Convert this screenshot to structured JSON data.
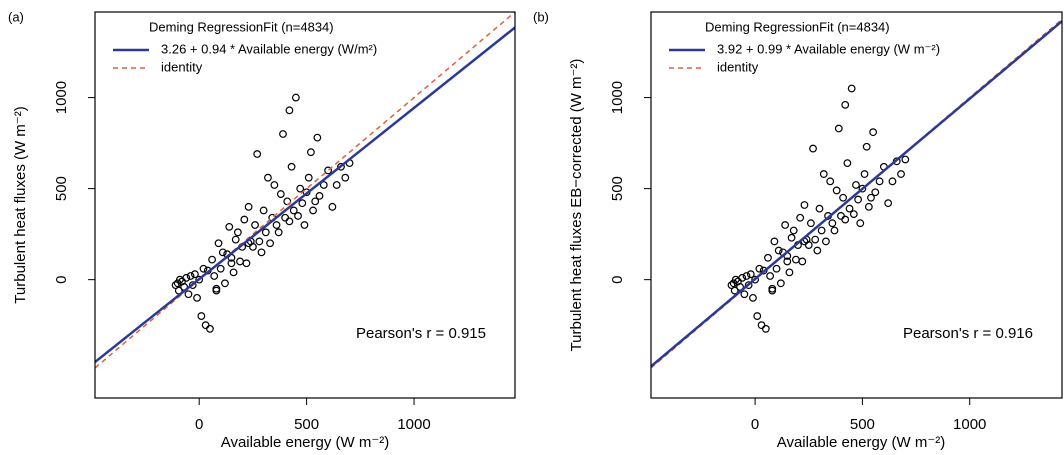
{
  "chart_data": [
    {
      "type": "scatter",
      "panel": "(a)",
      "xlabel": "Available energy (W m⁻²)",
      "ylabel": "Turbulent heat fluxes (W m⁻²)",
      "legend_title": "Deming RegressionFit (n=4834)",
      "annotation": "Pearson's r = 0.915",
      "xlim": [
        -485,
        1470
      ],
      "ylim": [
        -650,
        1470
      ],
      "xticks": [
        0,
        500,
        1000
      ],
      "yticks": [
        0,
        500,
        1000
      ],
      "point_color": "#000000",
      "x": [
        -110,
        -100,
        -95,
        -90,
        -80,
        -70,
        -60,
        -50,
        -40,
        -30,
        -20,
        -10,
        0,
        10,
        20,
        30,
        40,
        50,
        60,
        70,
        80,
        90,
        100,
        110,
        120,
        130,
        140,
        150,
        160,
        170,
        180,
        190,
        200,
        210,
        220,
        230,
        240,
        250,
        260,
        270,
        280,
        290,
        300,
        310,
        320,
        330,
        340,
        350,
        360,
        370,
        380,
        390,
        400,
        410,
        420,
        430,
        440,
        450,
        460,
        470,
        480,
        490,
        500,
        510,
        520,
        530,
        540,
        550,
        560,
        580,
        600,
        620,
        640,
        660,
        680,
        700,
        80,
        150,
        230,
        420
      ],
      "values": [
        -30,
        -20,
        -60,
        0,
        -10,
        -40,
        10,
        -80,
        20,
        -30,
        30,
        -100,
        0,
        -200,
        60,
        -250,
        50,
        -270,
        110,
        20,
        -60,
        200,
        60,
        150,
        -20,
        140,
        290,
        90,
        40,
        220,
        260,
        100,
        180,
        330,
        90,
        400,
        210,
        180,
        300,
        690,
        210,
        150,
        380,
        260,
        560,
        200,
        340,
        520,
        300,
        260,
        470,
        800,
        340,
        430,
        320,
        620,
        380,
        1000,
        350,
        500,
        420,
        300,
        480,
        560,
        700,
        380,
        430,
        780,
        460,
        520,
        600,
        400,
        520,
        620,
        560,
        640,
        -50,
        120,
        200,
        930
      ],
      "fit": {
        "name": "3.26 + 0.94 * Available energy (W/m²)",
        "intercept": 3.26,
        "slope": 0.94,
        "color": "#2b3a97"
      },
      "identity": {
        "name": "identity",
        "color": "#e0603a"
      }
    },
    {
      "type": "scatter",
      "panel": "(b)",
      "xlabel": "Available energy (W m⁻²)",
      "ylabel": "Turbulent heat fluxes EB−corrected (W m⁻²)",
      "legend_title": "Deming RegressionFit (n=4834)",
      "annotation": "Pearson's r = 0.916",
      "xlim": [
        -485,
        1430
      ],
      "ylim": [
        -650,
        1470
      ],
      "xticks": [
        0,
        500,
        1000
      ],
      "yticks": [
        0,
        500,
        1000
      ],
      "point_color": "#000000",
      "x": [
        -110,
        -100,
        -95,
        -90,
        -80,
        -70,
        -60,
        -50,
        -40,
        -30,
        -20,
        -10,
        0,
        10,
        20,
        30,
        40,
        50,
        60,
        70,
        80,
        90,
        100,
        110,
        120,
        130,
        140,
        150,
        160,
        170,
        180,
        190,
        200,
        210,
        220,
        230,
        240,
        250,
        260,
        270,
        280,
        290,
        300,
        310,
        320,
        330,
        340,
        350,
        360,
        370,
        380,
        390,
        400,
        410,
        420,
        430,
        440,
        450,
        460,
        470,
        480,
        490,
        500,
        510,
        520,
        530,
        540,
        550,
        560,
        580,
        600,
        620,
        640,
        660,
        680,
        700,
        80,
        150,
        230,
        420
      ],
      "values": [
        -30,
        -20,
        -60,
        0,
        -10,
        -40,
        10,
        -80,
        20,
        -30,
        30,
        -100,
        0,
        -200,
        60,
        -250,
        50,
        -270,
        120,
        20,
        -60,
        210,
        60,
        160,
        -20,
        150,
        300,
        100,
        40,
        230,
        270,
        110,
        190,
        340,
        100,
        410,
        220,
        190,
        310,
        720,
        220,
        160,
        390,
        270,
        580,
        210,
        350,
        540,
        310,
        270,
        490,
        830,
        350,
        450,
        330,
        640,
        390,
        1050,
        360,
        520,
        440,
        310,
        500,
        580,
        730,
        400,
        450,
        810,
        480,
        540,
        620,
        420,
        540,
        650,
        580,
        660,
        -50,
        130,
        210,
        960
      ],
      "fit": {
        "name": "3.92 + 0.99 * Available energy (W m⁻²)",
        "intercept": 3.92,
        "slope": 0.99,
        "color": "#2b3a97"
      },
      "identity": {
        "name": "identity",
        "color": "#e0603a"
      }
    }
  ]
}
